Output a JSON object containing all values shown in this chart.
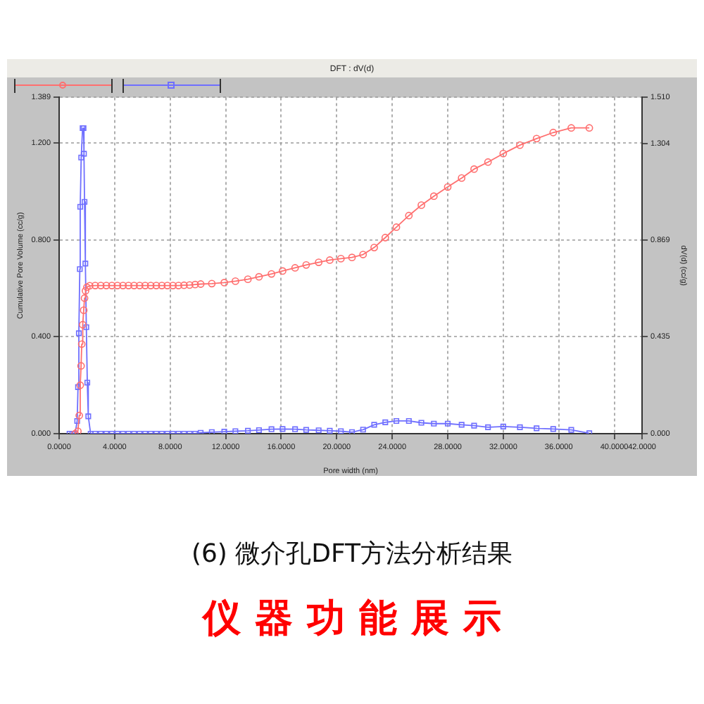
{
  "chart_data": {
    "type": "line",
    "title": "DFT : dV(d)",
    "xlabel": "Pore width (nm)",
    "ylabel": "Cumulative Pore Volume (cc/g)",
    "y2label": "dV(d) (cc/g)",
    "series": [
      {
        "color": "#ff6f6f",
        "marker": "circle",
        "x": [
          1.15,
          1.35,
          1.45,
          1.52,
          1.58,
          1.63,
          1.7,
          1.77,
          1.83,
          1.9,
          2.0,
          2.2,
          2.6,
          3.0,
          3.4,
          3.8,
          4.2,
          4.6,
          5.0,
          5.4,
          5.8,
          6.2,
          6.6,
          7.0,
          7.4,
          7.8,
          8.2,
          8.6,
          9.0,
          9.4,
          9.8,
          10.2,
          11.0,
          11.9,
          12.7,
          13.6,
          14.4,
          15.3,
          16.1,
          17.0,
          17.8,
          18.7,
          19.5,
          20.3,
          21.1,
          21.9,
          22.7,
          23.5,
          24.3,
          25.2,
          26.1,
          27.0,
          28.0,
          29.0,
          29.9,
          30.9,
          32.0,
          33.2,
          34.4,
          35.6,
          36.9,
          38.2
        ],
        "values": [
          0,
          0.01,
          0.075,
          0.2,
          0.28,
          0.37,
          0.45,
          0.51,
          0.56,
          0.59,
          0.605,
          0.611,
          0.612,
          0.612,
          0.612,
          0.612,
          0.612,
          0.612,
          0.612,
          0.612,
          0.612,
          0.612,
          0.612,
          0.612,
          0.612,
          0.612,
          0.612,
          0.612,
          0.613,
          0.614,
          0.616,
          0.618,
          0.62,
          0.624,
          0.63,
          0.638,
          0.648,
          0.66,
          0.672,
          0.685,
          0.697,
          0.708,
          0.717,
          0.723,
          0.728,
          0.74,
          0.769,
          0.81,
          0.853,
          0.901,
          0.944,
          0.981,
          1.019,
          1.056,
          1.093,
          1.122,
          1.157,
          1.192,
          1.219,
          1.244,
          1.263,
          1.263
        ]
      },
      {
        "color": "#6f6fff",
        "marker": "square",
        "axis": "y2",
        "x": [
          0.75,
          0.95,
          1.15,
          1.3,
          1.36,
          1.42,
          1.49,
          1.52,
          1.59,
          1.69,
          1.76,
          1.79,
          1.83,
          1.89,
          1.96,
          2.03,
          2.1,
          2.27,
          2.6,
          3.0,
          3.4,
          3.8,
          4.2,
          4.6,
          5.0,
          5.4,
          5.8,
          6.2,
          6.6,
          7.0,
          7.4,
          7.8,
          8.2,
          8.6,
          9.0,
          9.4,
          9.8,
          10.2,
          11.0,
          11.9,
          12.7,
          13.6,
          14.4,
          15.3,
          16.1,
          17.0,
          17.8,
          18.7,
          19.5,
          20.3,
          21.1,
          21.9,
          22.7,
          23.5,
          24.3,
          25.2,
          26.1,
          27.0,
          28.0,
          29.0,
          29.9,
          30.9,
          32.0,
          33.2,
          34.4,
          35.6,
          36.9,
          38.2
        ],
        "values": [
          0,
          0,
          0,
          0.057,
          0.209,
          0.451,
          0.739,
          1.019,
          1.24,
          1.372,
          1.372,
          1.257,
          1.041,
          0.764,
          0.478,
          0.229,
          0.078,
          0,
          0,
          0,
          0,
          0,
          0,
          0,
          0,
          0,
          0,
          0,
          0,
          0,
          0,
          0,
          0,
          0,
          0,
          0,
          0,
          0.004,
          0.007,
          0.009,
          0.011,
          0.013,
          0.016,
          0.02,
          0.021,
          0.02,
          0.017,
          0.015,
          0.013,
          0.011,
          0.007,
          0.018,
          0.04,
          0.051,
          0.057,
          0.057,
          0.049,
          0.045,
          0.045,
          0.04,
          0.036,
          0.029,
          0.032,
          0.029,
          0.024,
          0.021,
          0.017,
          0.002
        ]
      }
    ],
    "xlim": [
      0,
      42
    ],
    "xticks": [
      {
        "value": 0,
        "label": "0.0000"
      },
      {
        "value": 4,
        "label": "4.0000"
      },
      {
        "value": 8,
        "label": "8.0000"
      },
      {
        "value": 12,
        "label": "12.0000"
      },
      {
        "value": 16,
        "label": "16.0000"
      },
      {
        "value": 20,
        "label": "20.0000"
      },
      {
        "value": 24,
        "label": "24.0000"
      },
      {
        "value": 28,
        "label": "28.0000"
      },
      {
        "value": 32,
        "label": "32.0000"
      },
      {
        "value": 36,
        "label": "36.0000"
      },
      {
        "value": 40,
        "label": "40.0000"
      },
      {
        "value": 42,
        "label": "42.0000"
      }
    ],
    "ylim": [
      0,
      1.389
    ],
    "yticks": [
      {
        "value": 0,
        "label": "0.000"
      },
      {
        "value": 0.4,
        "label": "0.400"
      },
      {
        "value": 0.8,
        "label": "0.800"
      },
      {
        "value": 1.2,
        "label": "1.200"
      },
      1.389
    ],
    "y2lim": [
      0,
      1.51
    ],
    "y2ticks": [
      {
        "value": 0,
        "label": "0.000"
      },
      0.435,
      0.869,
      1.304,
      {
        "value": 1.51,
        "label": "1.510"
      }
    ],
    "grid": true,
    "annotations": [
      "(6) 微介孔DFT方法分析结果",
      "仪器功能展示"
    ]
  }
}
